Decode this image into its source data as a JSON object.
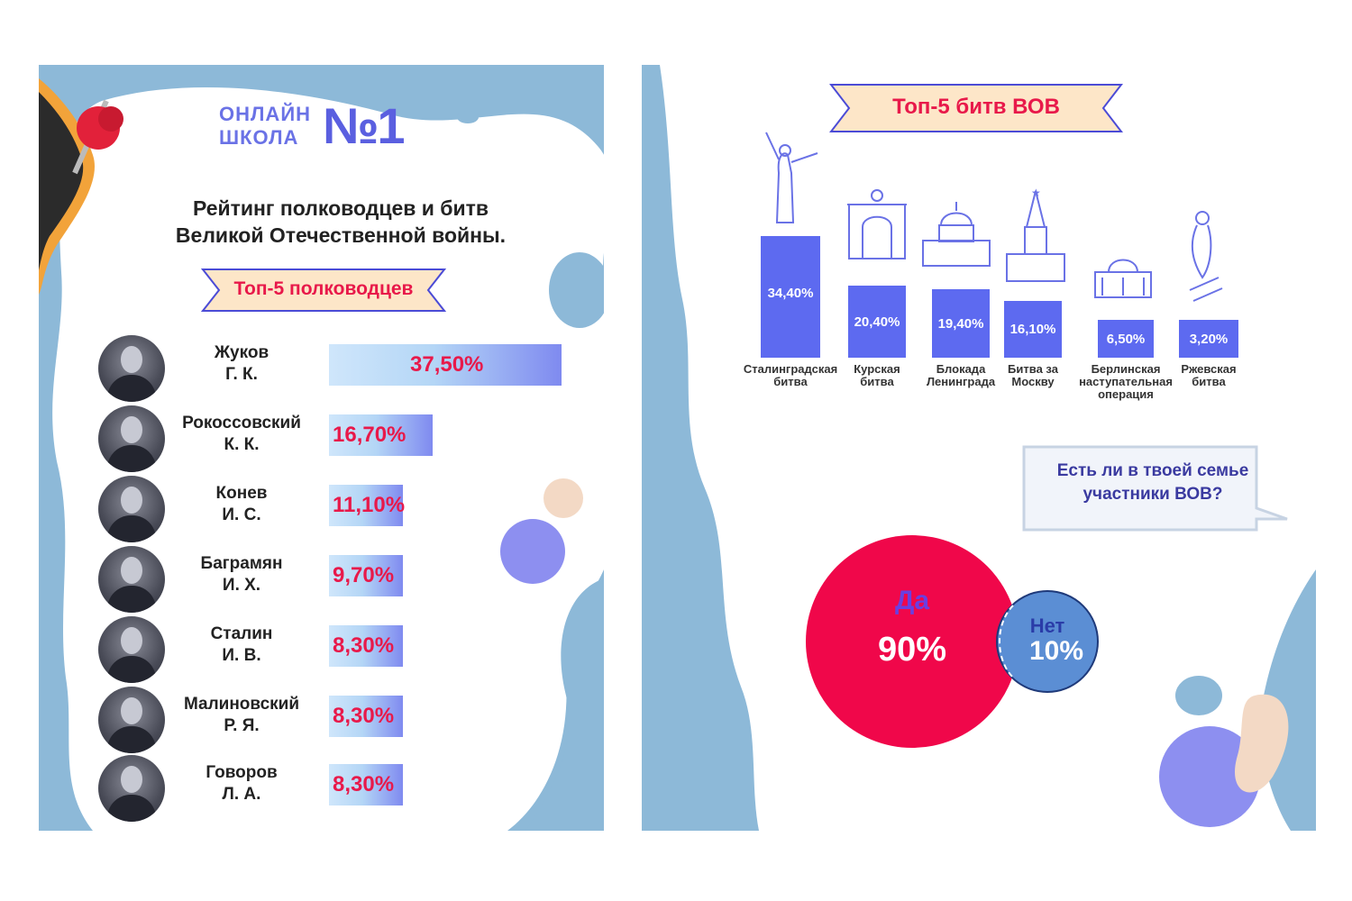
{
  "left": {
    "logo": {
      "line1": "ОНЛАЙН",
      "line2": "ШКОЛА",
      "number": "№1"
    },
    "title_line1": "Рейтинг полководцев и битв",
    "title_line2": "Великой Отечественной войны.",
    "ribbon_label": "Топ-5 полководцев"
  },
  "right": {
    "ribbon_label": "Топ-5 битв ВОВ",
    "question": "Есть ли в твоей семье\nучастники ВОВ?"
  },
  "chart_data": [
    {
      "type": "bar",
      "orientation": "horizontal",
      "title": "Топ-5 полководцев",
      "categories": [
        "Жуков\nГ. К.",
        "Рокоссовский\nК. К.",
        "Конев\nИ. С.",
        "Баграмян\nИ. Х.",
        "Сталин\nИ. В.",
        "Малиновский\nР. Я.",
        "Говоров\nЛ. А."
      ],
      "values": [
        37.5,
        16.7,
        11.1,
        9.7,
        8.3,
        8.3,
        8.3
      ],
      "value_labels": [
        "37,50%",
        "16,70%",
        "11,10%",
        "9,70%",
        "8,30%",
        "8,30%",
        "8,30%"
      ],
      "unit": "%"
    },
    {
      "type": "bar",
      "orientation": "vertical",
      "title": "Топ-5 битв ВОВ",
      "categories": [
        "Сталинградская\nбитва",
        "Курская\nбитва",
        "Блокада\nЛенинграда",
        "Битва за\nМоскву",
        "Берлинская\nнаступательная\nоперация",
        "Ржевская\nбитва"
      ],
      "values": [
        34.4,
        20.4,
        19.4,
        16.1,
        6.5,
        3.2
      ],
      "value_labels": [
        "34,40%",
        "20,40%",
        "19,40%",
        "16,10%",
        "6,50%",
        "3,20%"
      ],
      "unit": "%"
    },
    {
      "type": "pie",
      "title": "Есть ли в твоей семье участники ВОВ?",
      "categories": [
        "Да",
        "Нет"
      ],
      "values": [
        90,
        10
      ],
      "value_labels": [
        "90%",
        "10%"
      ],
      "colors": [
        "#f0074a",
        "#5b8ed4"
      ]
    }
  ]
}
